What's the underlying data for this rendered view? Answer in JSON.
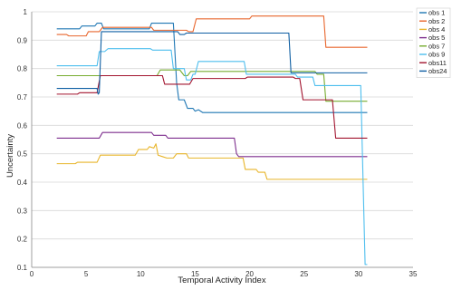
{
  "chart_data": {
    "type": "line",
    "title": "",
    "xlabel": "Temporal Activity Index",
    "ylabel": "Uncertainty",
    "xlim": [
      0,
      35
    ],
    "ylim": [
      0.1,
      1.0
    ],
    "xticks": [
      "0",
      "5",
      "10",
      "15",
      "20",
      "25",
      "30",
      "35"
    ],
    "yticks": [
      "0.1",
      "0.2",
      "0.3",
      "0.4",
      "0.5",
      "0.6",
      "0.7",
      "0.8",
      "0.9",
      "1"
    ],
    "grid": "horizontal",
    "legend_position": "top-right",
    "series": [
      {
        "name": "obs 1",
        "color": "#1f77b4",
        "points": [
          [
            2.3,
            0.94
          ],
          [
            4.4,
            0.94
          ],
          [
            4.6,
            0.95
          ],
          [
            5.8,
            0.95
          ],
          [
            6.0,
            0.96
          ],
          [
            6.4,
            0.96
          ],
          [
            6.6,
            0.94
          ],
          [
            10.8,
            0.94
          ],
          [
            11.0,
            0.96
          ],
          [
            13.0,
            0.96
          ],
          [
            13.3,
            0.75
          ],
          [
            13.5,
            0.69
          ],
          [
            14.0,
            0.69
          ],
          [
            14.3,
            0.66
          ],
          [
            14.8,
            0.66
          ],
          [
            15.0,
            0.65
          ],
          [
            15.3,
            0.655
          ],
          [
            15.7,
            0.645
          ],
          [
            30.8,
            0.645
          ]
        ]
      },
      {
        "name": "obs 2",
        "color": "#e8662d",
        "points": [
          [
            2.3,
            0.92
          ],
          [
            3.2,
            0.92
          ],
          [
            3.4,
            0.915
          ],
          [
            5.0,
            0.915
          ],
          [
            5.2,
            0.93
          ],
          [
            6.2,
            0.93
          ],
          [
            6.5,
            0.945
          ],
          [
            11.0,
            0.945
          ],
          [
            11.2,
            0.935
          ],
          [
            14.2,
            0.935
          ],
          [
            14.4,
            0.93
          ],
          [
            14.8,
            0.93
          ],
          [
            15.1,
            0.975
          ],
          [
            20.0,
            0.975
          ],
          [
            20.2,
            0.985
          ],
          [
            26.8,
            0.985
          ],
          [
            27.0,
            0.875
          ],
          [
            30.8,
            0.875
          ]
        ]
      },
      {
        "name": "obs 4",
        "color": "#e8b52a",
        "points": [
          [
            2.3,
            0.465
          ],
          [
            4.0,
            0.465
          ],
          [
            4.2,
            0.47
          ],
          [
            6.0,
            0.47
          ],
          [
            6.3,
            0.495
          ],
          [
            9.5,
            0.495
          ],
          [
            9.8,
            0.515
          ],
          [
            10.6,
            0.515
          ],
          [
            10.8,
            0.525
          ],
          [
            11.2,
            0.52
          ],
          [
            11.4,
            0.535
          ],
          [
            11.6,
            0.495
          ],
          [
            12.0,
            0.49
          ],
          [
            12.4,
            0.485
          ],
          [
            13.0,
            0.485
          ],
          [
            13.3,
            0.5
          ],
          [
            14.2,
            0.5
          ],
          [
            14.4,
            0.485
          ],
          [
            19.4,
            0.485
          ],
          [
            19.6,
            0.445
          ],
          [
            20.6,
            0.445
          ],
          [
            20.8,
            0.435
          ],
          [
            21.4,
            0.435
          ],
          [
            21.6,
            0.41
          ],
          [
            30.8,
            0.41
          ]
        ]
      },
      {
        "name": "obs 5",
        "color": "#7e2f8e",
        "points": [
          [
            2.3,
            0.555
          ],
          [
            6.2,
            0.555
          ],
          [
            6.5,
            0.575
          ],
          [
            11.0,
            0.575
          ],
          [
            11.2,
            0.565
          ],
          [
            12.3,
            0.565
          ],
          [
            12.5,
            0.555
          ],
          [
            18.6,
            0.555
          ],
          [
            18.8,
            0.5
          ],
          [
            19.0,
            0.49
          ],
          [
            30.8,
            0.49
          ]
        ]
      },
      {
        "name": "obs 7",
        "color": "#77ac30",
        "points": [
          [
            2.3,
            0.775
          ],
          [
            11.5,
            0.775
          ],
          [
            11.8,
            0.795
          ],
          [
            13.6,
            0.795
          ],
          [
            13.8,
            0.785
          ],
          [
            14.0,
            0.775
          ],
          [
            14.3,
            0.775
          ],
          [
            14.6,
            0.79
          ],
          [
            26.0,
            0.79
          ],
          [
            26.2,
            0.78
          ],
          [
            26.8,
            0.78
          ],
          [
            27.0,
            0.685
          ],
          [
            30.8,
            0.685
          ]
        ]
      },
      {
        "name": "obs 9",
        "color": "#4dbeee",
        "points": [
          [
            2.3,
            0.81
          ],
          [
            6.0,
            0.81
          ],
          [
            6.2,
            0.86
          ],
          [
            6.7,
            0.86
          ],
          [
            7.0,
            0.87
          ],
          [
            10.9,
            0.87
          ],
          [
            11.1,
            0.865
          ],
          [
            12.8,
            0.865
          ],
          [
            13.0,
            0.8
          ],
          [
            14.0,
            0.8
          ],
          [
            14.2,
            0.76
          ],
          [
            14.6,
            0.76
          ],
          [
            14.8,
            0.78
          ],
          [
            15.0,
            0.78
          ],
          [
            15.3,
            0.825
          ],
          [
            19.5,
            0.825
          ],
          [
            19.7,
            0.78
          ],
          [
            24.2,
            0.78
          ],
          [
            24.4,
            0.77
          ],
          [
            25.8,
            0.77
          ],
          [
            26.0,
            0.74
          ],
          [
            30.2,
            0.74
          ],
          [
            30.6,
            0.11
          ],
          [
            30.8,
            0.11
          ]
        ]
      },
      {
        "name": "obs11",
        "color": "#a2142f",
        "points": [
          [
            2.3,
            0.71
          ],
          [
            4.2,
            0.71
          ],
          [
            4.4,
            0.715
          ],
          [
            6.0,
            0.715
          ],
          [
            6.3,
            0.775
          ],
          [
            12.0,
            0.775
          ],
          [
            12.2,
            0.745
          ],
          [
            14.5,
            0.745
          ],
          [
            14.8,
            0.765
          ],
          [
            19.6,
            0.765
          ],
          [
            19.8,
            0.77
          ],
          [
            24.0,
            0.77
          ],
          [
            24.2,
            0.765
          ],
          [
            24.6,
            0.765
          ],
          [
            24.9,
            0.69
          ],
          [
            27.6,
            0.69
          ],
          [
            27.9,
            0.555
          ],
          [
            30.8,
            0.555
          ]
        ]
      },
      {
        "name": "obs24",
        "color": "#0f5fa3",
        "points": [
          [
            2.3,
            0.73
          ],
          [
            6.0,
            0.73
          ],
          [
            6.1,
            0.71
          ],
          [
            6.2,
            0.715
          ],
          [
            6.4,
            0.93
          ],
          [
            13.4,
            0.93
          ],
          [
            13.6,
            0.92
          ],
          [
            14.0,
            0.92
          ],
          [
            14.2,
            0.925
          ],
          [
            23.6,
            0.925
          ],
          [
            23.8,
            0.785
          ],
          [
            30.8,
            0.785
          ]
        ]
      }
    ]
  }
}
